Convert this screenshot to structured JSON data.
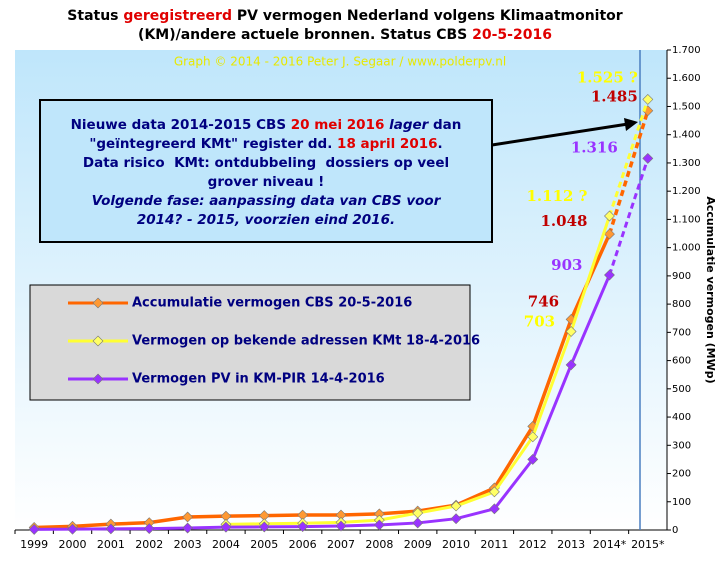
{
  "chart_data": {
    "type": "line",
    "title_lines": [
      [
        {
          "text": "Status ",
          "color": "#000000"
        },
        {
          "text": "geregistreerd",
          "color": "#e00000"
        },
        {
          "text": " PV vermogen Nederland volgens Klimaatmonitor",
          "color": "#000000"
        }
      ],
      [
        {
          "text": "(KM)/andere actuele bronnen. Status CBS ",
          "color": "#000000"
        },
        {
          "text": "20-5-2016",
          "color": "#e00000"
        }
      ]
    ],
    "subtitle": "Graph © 2014 - 2016 Peter J. Segaar / www.polderpv.nl",
    "y_label": "Accumulatie vermogen (MWp)",
    "annotation_lines": [
      [
        {
          "text": "Nieuwe data 2014-2015 CBS ",
          "color": "#000080"
        },
        {
          "text": "20 mei 2016",
          "color": "#e00000"
        },
        {
          "text": " ",
          "color": "#000080"
        },
        {
          "text": "lager",
          "color": "#000080",
          "italic": true
        },
        {
          "text": " dan",
          "color": "#000080"
        }
      ],
      [
        {
          "text": "\"geïntegreerd KMt\" register dd. ",
          "color": "#000080"
        },
        {
          "text": "18 april 2016",
          "color": "#e00000"
        },
        {
          "text": ".",
          "color": "#000080"
        }
      ],
      [
        {
          "text": "Data risico  KMt: ontdubbeling  dossiers op veel",
          "color": "#000080"
        }
      ],
      [
        {
          "text": "grover niveau !",
          "color": "#000080"
        }
      ],
      [
        {
          "text": "Volgende fase: aanpassing data van CBS voor",
          "color": "#000080",
          "italic": true
        }
      ],
      [
        {
          "text": "2014? - 2015, voorzien eind 2016.",
          "color": "#000080",
          "italic": true
        }
      ]
    ],
    "categories": [
      "1999",
      "2000",
      "2001",
      "2002",
      "2003",
      "2004",
      "2005",
      "2006",
      "2007",
      "2008",
      "2009",
      "2010",
      "2011",
      "2012",
      "2013",
      "2014*",
      "2015*"
    ],
    "dash_from": "2014*",
    "series": [
      {
        "name": "Accumulatie vermogen CBS 20-5-2016",
        "color": "#ff6600",
        "marker_color": "#ff9933",
        "label_color": "#c00000",
        "values": [
          9,
          13,
          21,
          26,
          46,
          49,
          51,
          53,
          53,
          57,
          67,
          88,
          149,
          367,
          746,
          1048,
          1485
        ],
        "value_labels": [
          null,
          null,
          null,
          null,
          null,
          null,
          null,
          null,
          null,
          null,
          null,
          null,
          null,
          null,
          "746",
          "1.048",
          "1.485"
        ]
      },
      {
        "name": "Vermogen op bekende adressen KMt 18-4-2016",
        "color": "#ffff33",
        "marker_color": "#ffff66",
        "label_color": "#ffff00",
        "values": [
          null,
          null,
          null,
          null,
          null,
          20,
          22,
          24,
          27,
          35,
          60,
          85,
          135,
          330,
          703,
          1112,
          1525
        ],
        "value_labels": [
          null,
          null,
          null,
          null,
          null,
          null,
          null,
          null,
          null,
          null,
          null,
          null,
          null,
          null,
          "703",
          "1.112 ?",
          "1.525 ?"
        ]
      },
      {
        "name": "Vermogen PV in KM-PIR 14-4-2016",
        "color": "#9933ff",
        "marker_color": "#9933ff",
        "label_color": "#9933ff",
        "values": [
          2,
          3,
          4,
          5,
          7,
          10,
          11,
          12,
          14,
          18,
          25,
          40,
          75,
          250,
          585,
          903,
          1316
        ],
        "value_labels": [
          null,
          null,
          null,
          null,
          null,
          null,
          null,
          null,
          null,
          null,
          null,
          null,
          null,
          null,
          null,
          "903",
          "1.316"
        ]
      }
    ],
    "ylim": [
      0,
      1700
    ],
    "yticks": [
      0,
      100,
      200,
      300,
      400,
      500,
      600,
      700,
      800,
      900,
      {
        "value": 1000,
        "label": "1.000"
      },
      {
        "value": 1100,
        "label": "1.100"
      },
      {
        "value": 1200,
        "label": "1.200"
      },
      {
        "value": 1300,
        "label": "1.300"
      },
      {
        "value": 1400,
        "label": "1.400"
      },
      {
        "value": 1500,
        "label": "1.500"
      },
      {
        "value": 1600,
        "label": "1.600"
      },
      {
        "value": 1700,
        "label": "1.700"
      }
    ],
    "grid": false
  }
}
